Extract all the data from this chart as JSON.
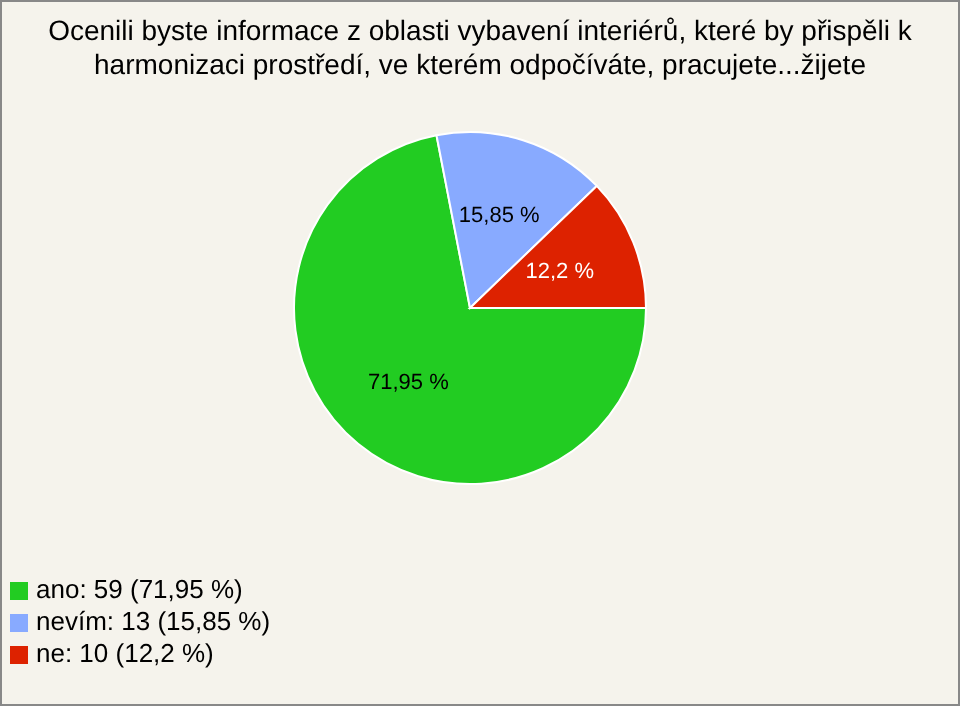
{
  "chart_data": {
    "type": "pie",
    "title": "Ocenili byste informace z oblasti vybavení interiérů, které by přispěli k harmonizaci prostředí, ve kterém odpočíváte, pracujete...žijete",
    "categories": [
      "ano: 59 (71,95 %)",
      "nevím: 13 (15,85 %)",
      "ne: 10 (12,2 %)"
    ],
    "values": [
      71.95,
      15.85,
      12.2
    ],
    "colors": [
      "#22cc22",
      "#88aaff",
      "#dd2200"
    ],
    "value_labels": [
      "71,95 %",
      "15,85 %",
      "12,2 %"
    ],
    "legend": "bottom left"
  }
}
